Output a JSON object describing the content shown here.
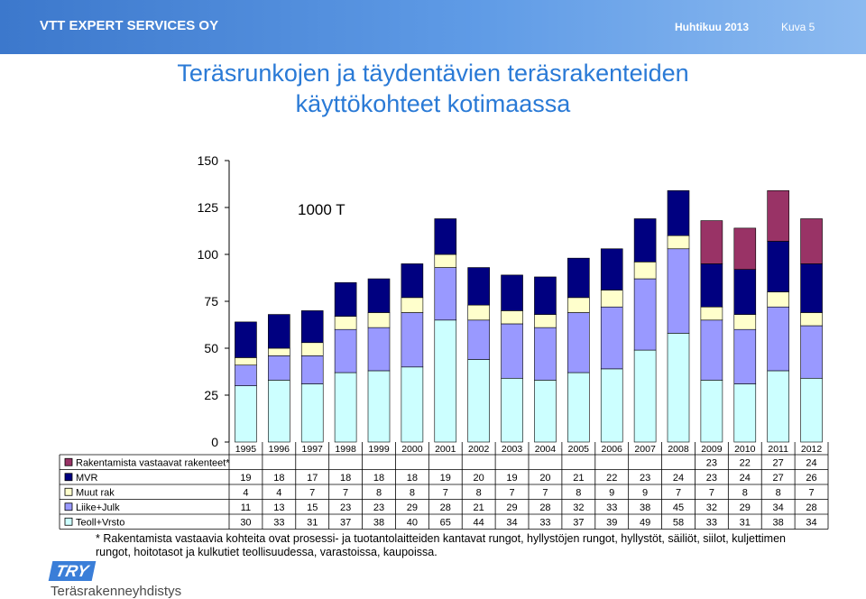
{
  "header": {
    "company": "VTT EXPERT SERVICES OY",
    "date": "Huhtikuu 2013",
    "slide": "Kuva 5"
  },
  "title": {
    "line1": "Teräsrunkojen ja täydentävien teräsrakenteiden",
    "line2": "käyttökohteet kotimaassa"
  },
  "chart_data": {
    "type": "bar",
    "stacked": true,
    "annotation": "1000 T",
    "ylim": [
      0,
      150
    ],
    "yticks": [
      0,
      25,
      50,
      75,
      100,
      125,
      150
    ],
    "categories": [
      "1995",
      "1996",
      "1997",
      "1998",
      "1999",
      "2000",
      "2001",
      "2002",
      "2003",
      "2004",
      "2005",
      "2006",
      "2007",
      "2008",
      "2009",
      "2010",
      "2011",
      "2012"
    ],
    "series": [
      {
        "name": "Teoll+Vrsto",
        "color": "#ccffff",
        "values": [
          30,
          33,
          31,
          37,
          38,
          40,
          65,
          44,
          34,
          33,
          37,
          39,
          49,
          58,
          33,
          31,
          38,
          34
        ]
      },
      {
        "name": "Liike+Julk",
        "color": "#9999ff",
        "values": [
          11,
          13,
          15,
          23,
          23,
          29,
          28,
          21,
          29,
          28,
          32,
          33,
          38,
          45,
          32,
          29,
          34,
          28
        ]
      },
      {
        "name": "Muut rak",
        "color": "#ffffcc",
        "values": [
          4,
          4,
          7,
          7,
          8,
          8,
          7,
          8,
          7,
          7,
          8,
          9,
          9,
          7,
          7,
          8,
          8,
          7
        ]
      },
      {
        "name": "MVR",
        "color": "#000080",
        "values": [
          19,
          18,
          17,
          18,
          18,
          18,
          19,
          20,
          19,
          20,
          21,
          22,
          23,
          24,
          23,
          24,
          27,
          26
        ]
      },
      {
        "name": "Rakentamista vastaavat rakenteet*",
        "color": "#993366",
        "values": [
          null,
          null,
          null,
          null,
          null,
          null,
          null,
          null,
          null,
          null,
          null,
          null,
          null,
          null,
          23,
          22,
          27,
          24
        ]
      }
    ],
    "table_rows_order": [
      "Rakentamista vastaavat rakenteet*",
      "MVR",
      "Muut rak",
      "Liike+Julk",
      "Teoll+Vrsto"
    ]
  },
  "footnote": {
    "line1": "* Rakentamista vastaavia kohteita ovat prosessi- ja tuotantolaitteiden kantavat rungot, hyllystöjen rungot, hyllystöt, säiliöt, siilot, kuljettimen",
    "line2": "rungot, hoitotasot ja kulkutiet teollisuudessa, varastoissa, kaupoissa."
  },
  "logo": {
    "short": "TRY",
    "name": "Teräsrakenneyhdistys"
  }
}
